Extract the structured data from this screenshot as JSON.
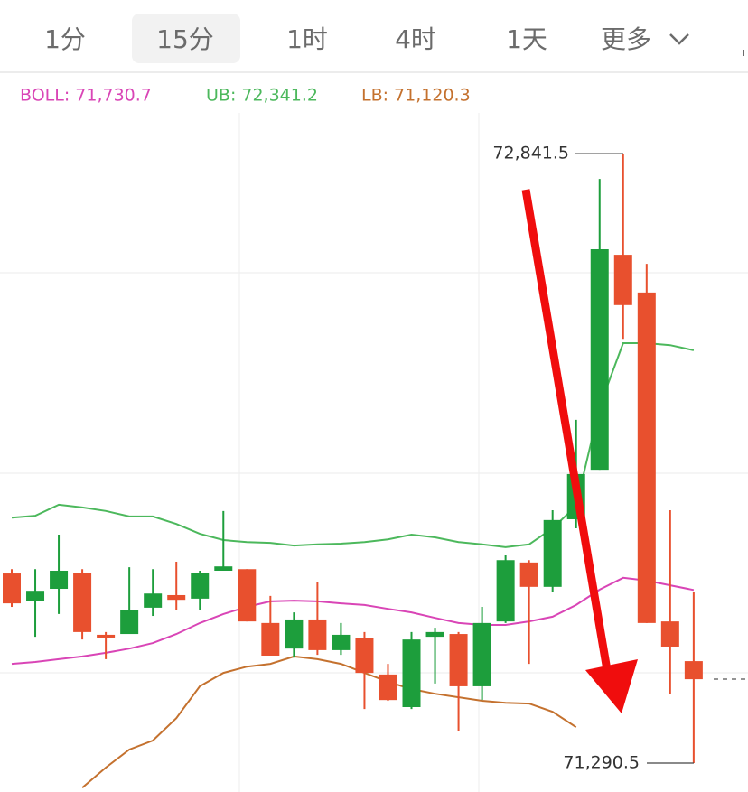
{
  "tabs": [
    "1分",
    "15分",
    "1时",
    "4时",
    "1天",
    "更多"
  ],
  "active_tab": 1,
  "chart_data": {
    "type": "candlestick",
    "ylim": [
      71217,
      72945
    ],
    "up_color": "#1d9e3c",
    "down_color": "#e8502e",
    "open": [
      71773,
      71704,
      71734,
      71775,
      71617,
      71619,
      71686,
      71718,
      71709,
      71780,
      71784,
      71647,
      71582,
      71656,
      71578,
      71608,
      71516,
      71433,
      71612,
      71619,
      71486,
      71651,
      71801,
      71739,
      71911,
      72037,
      72584,
      72488,
      71651,
      71550
    ],
    "high": [
      71784,
      71784,
      71872,
      71784,
      71624,
      71789,
      71784,
      71803,
      71780,
      71932,
      71784,
      71716,
      71674,
      71750,
      71647,
      71624,
      71543,
      71624,
      71635,
      71624,
      71688,
      71819,
      71807,
      71934,
      72164,
      72777,
      72841.5,
      72561,
      71934,
      71727
    ],
    "low": [
      71688,
      71612,
      71670,
      71605,
      71555,
      71619,
      71665,
      71681,
      71681,
      71780,
      71651,
      71564,
      71559,
      71566,
      71566,
      71428,
      71449,
      71428,
      71493,
      71371,
      71451,
      71647,
      71543,
      71727,
      71888,
      72037,
      72370,
      71647,
      71467,
      71290.5
    ],
    "close": [
      71697,
      71729,
      71780,
      71624,
      71610,
      71681,
      71722,
      71706,
      71775,
      71791,
      71651,
      71564,
      71656,
      71578,
      71617,
      71520,
      71451,
      71605,
      71624,
      71486,
      71647,
      71807,
      71739,
      71909,
      72026,
      72598,
      72456,
      71647,
      71587,
      71504
    ],
    "series": [
      {
        "name": "BOLL: 71,730.7",
        "color": "#d945b6",
        "values": [
          71543,
          71548,
          71555,
          71562,
          71571,
          71582,
          71596,
          71619,
          71647,
          71670,
          71688,
          71702,
          71704,
          71702,
          71697,
          71693,
          71683,
          71674,
          71660,
          71647,
          71642,
          71642,
          71651,
          71663,
          71693,
          71732,
          71762,
          71755,
          71743,
          71731
        ]
      },
      {
        "name": "UB: 72,341.2",
        "color": "#4cb85c",
        "values": [
          71915,
          71920,
          71948,
          71941,
          71932,
          71918,
          71918,
          71899,
          71874,
          71858,
          71853,
          71851,
          71844,
          71847,
          71849,
          71853,
          71860,
          71872,
          71865,
          71853,
          71847,
          71840,
          71847,
          71888,
          71945,
          72198,
          72359,
          72359,
          72354,
          72341
        ]
      },
      {
        "name": "LB: 71,120.3",
        "color": "#c4712e",
        "values": [
          null,
          null,
          null,
          71228,
          71279,
          71325,
          71348,
          71405,
          71486,
          71520,
          71536,
          71543,
          71562,
          71555,
          71543,
          71520,
          71497,
          71479,
          71467,
          71458,
          71449,
          71444,
          71442,
          71421,
          71382,
          null,
          null,
          null,
          null,
          null
        ]
      }
    ],
    "annotations": [
      {
        "value": 72841.5,
        "label": "72,841.5"
      },
      {
        "value": 71290.5,
        "label": "71,290.5"
      }
    ]
  }
}
